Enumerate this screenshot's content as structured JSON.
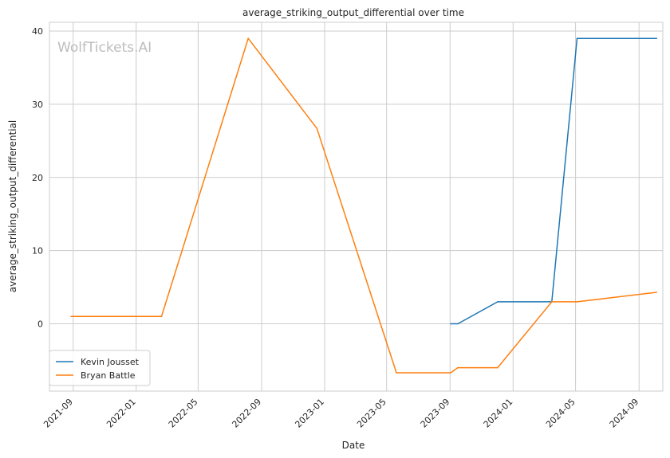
{
  "watermark": "WolfTickets.AI",
  "chart_data": {
    "type": "line",
    "title": "average_striking_output_differential over time",
    "xlabel": "Date",
    "ylabel": "average_striking_output_differential",
    "x_ticks": [
      "2021-09",
      "2022-01",
      "2022-05",
      "2022-09",
      "2023-01",
      "2023-05",
      "2023-09",
      "2024-01",
      "2024-05",
      "2024-09"
    ],
    "y_ticks": [
      0,
      10,
      20,
      30,
      40
    ],
    "xlim": [
      "2021-07-17",
      "2024-10-17"
    ],
    "ylim": [
      -9.2,
      41.2
    ],
    "grid": true,
    "legend_position": "lower-left",
    "series": [
      {
        "name": "Kevin Jousset",
        "color": "#1f77b4",
        "x": [
          "2023-09-02",
          "2023-09-16",
          "2023-12-02",
          "2024-03-16",
          "2024-05-04",
          "2024-10-05"
        ],
        "y": [
          0,
          0,
          3.0,
          3.0,
          39.0,
          39.0
        ]
      },
      {
        "name": "Bryan Battle",
        "color": "#ff7f0e",
        "x": [
          "2021-08-28",
          "2022-02-19",
          "2022-08-06",
          "2022-12-17",
          "2023-05-20",
          "2023-09-02",
          "2023-09-16",
          "2023-12-02",
          "2024-03-16",
          "2024-05-04",
          "2024-10-05"
        ],
        "y": [
          1.0,
          1.0,
          39.0,
          26.7,
          -6.7,
          -6.7,
          -6.0,
          -6.0,
          3.0,
          3.0,
          4.3
        ]
      }
    ]
  }
}
